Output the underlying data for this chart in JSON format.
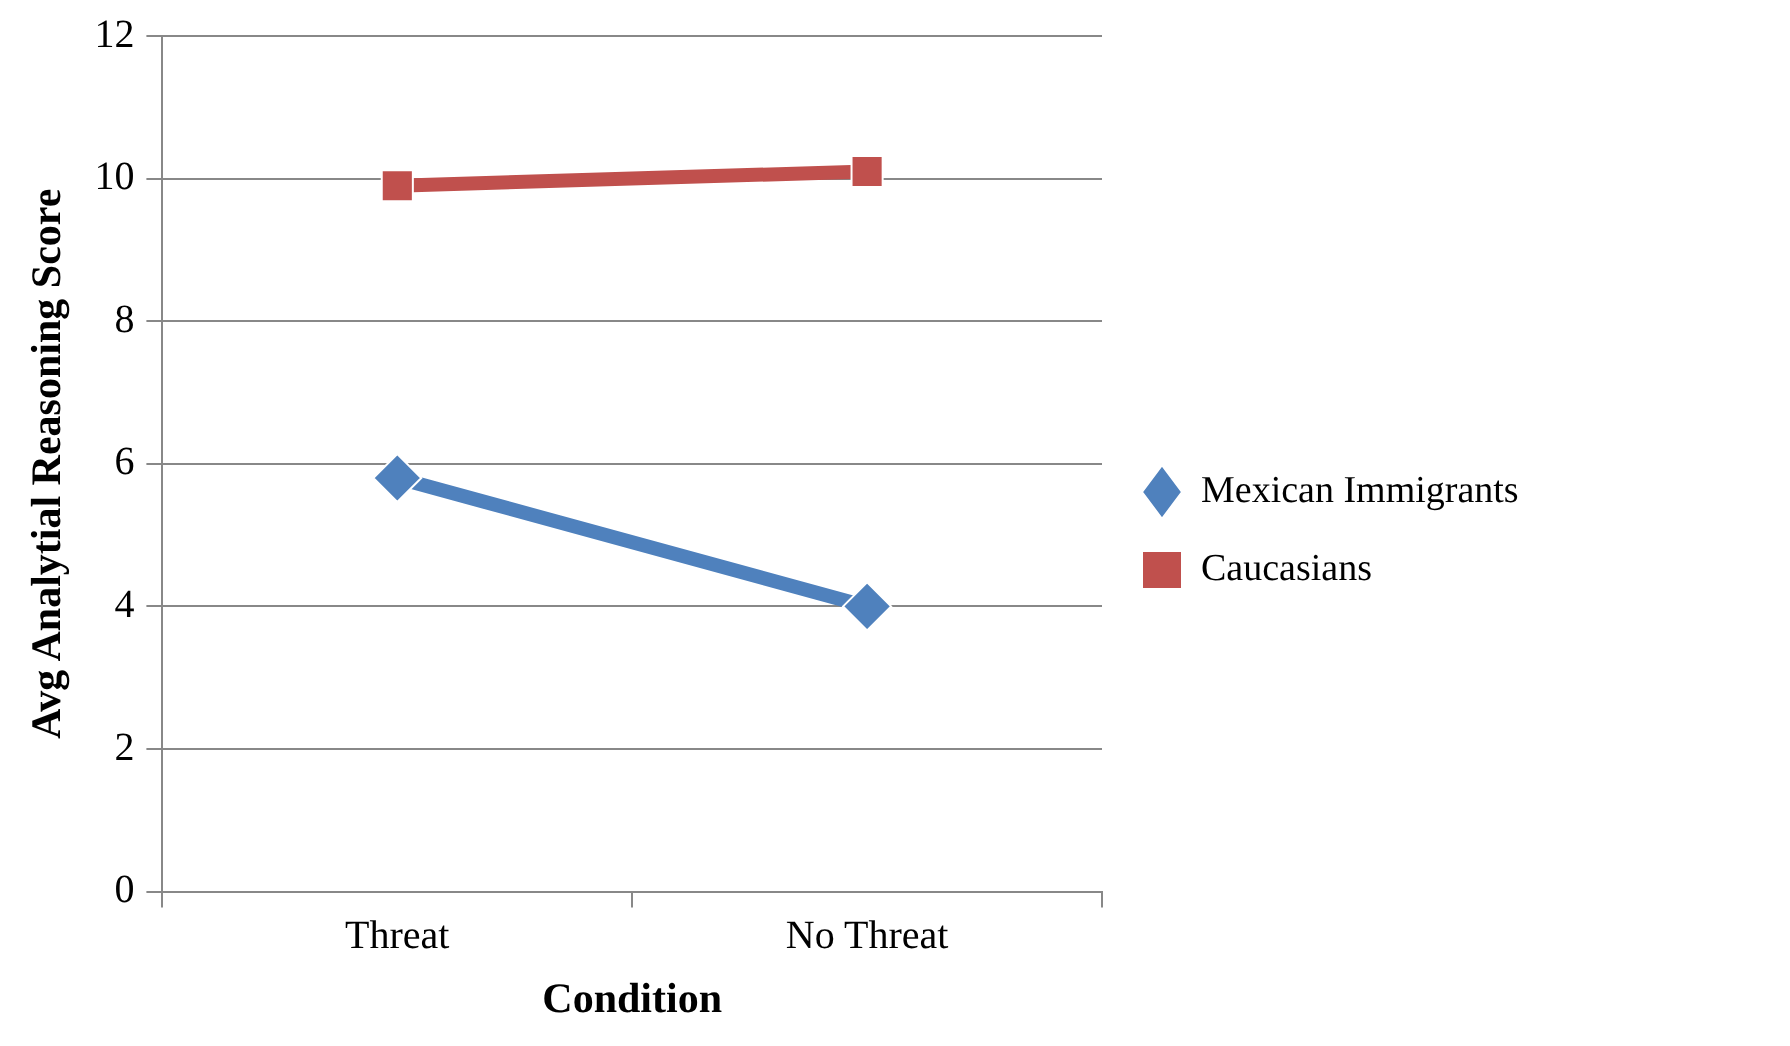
{
  "chart_data": {
    "type": "line",
    "xlabel": "Condition",
    "ylabel": "Avg Analytial Reasoning Score",
    "categories": [
      "Threat",
      "No Threat"
    ],
    "series": [
      {
        "name": "Mexican Immigrants",
        "color": "#4f81bd",
        "values": [
          5.8,
          4.0
        ],
        "marker": "diamond"
      },
      {
        "name": "Caucasians",
        "color": "#c0504d",
        "values": [
          9.9,
          10.1
        ],
        "marker": "square"
      }
    ],
    "ylim": [
      0,
      12
    ],
    "yticks": [
      0,
      2,
      4,
      6,
      8,
      10,
      12
    ],
    "grid": "y",
    "legend": "right",
    "line_style": "solid"
  }
}
